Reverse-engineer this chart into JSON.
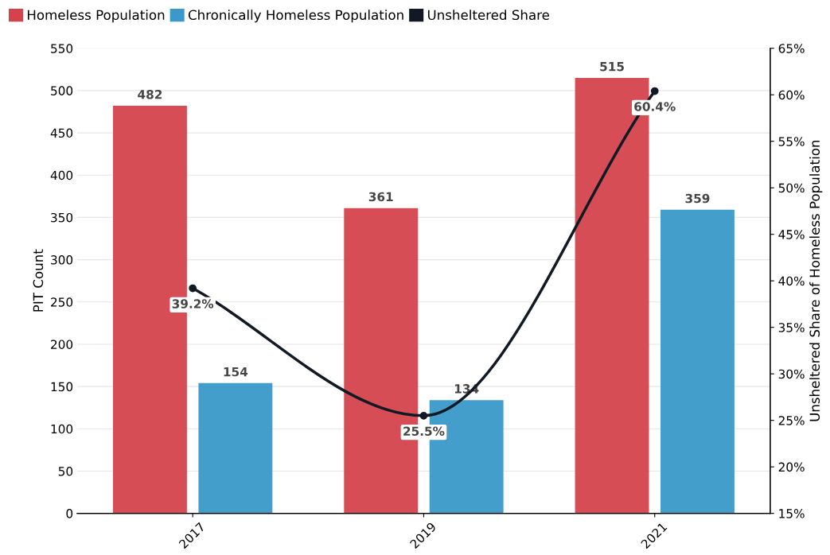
{
  "chart_data": {
    "type": "bar",
    "categories": [
      "2017",
      "2019",
      "2021"
    ],
    "ylabel": "PIT Count",
    "y2label": "Unsheltered Share of Homeless Population",
    "series": [
      {
        "name": "Homeless Population",
        "color": "#d4434c",
        "values": [
          482,
          361,
          515
        ]
      },
      {
        "name": "Chronically Homeless Population",
        "color": "#3a99c9",
        "values": [
          154,
          134,
          359
        ]
      },
      {
        "name": "Unsheltered Share",
        "color": "#111a24",
        "type": "line",
        "axis": "y2",
        "marker": "circle",
        "values": [
          39.2,
          25.5,
          60.4
        ],
        "value_labels": [
          "39.2%",
          "25.5%",
          "60.4%"
        ]
      }
    ],
    "ylim": [
      0,
      550
    ],
    "yticks": [
      0,
      50,
      100,
      150,
      200,
      250,
      300,
      350,
      400,
      450,
      500,
      550
    ],
    "y2lim": [
      15,
      65
    ],
    "y2ticks": [
      {
        "value": 15,
        "label": "15%"
      },
      {
        "value": 20,
        "label": "20%"
      },
      {
        "value": 25,
        "label": "25%"
      },
      {
        "value": 30,
        "label": "30%"
      },
      {
        "value": 35,
        "label": "35%"
      },
      {
        "value": 40,
        "label": "40%"
      },
      {
        "value": 45,
        "label": "45%"
      },
      {
        "value": 50,
        "label": "50%"
      },
      {
        "value": 55,
        "label": "55%"
      },
      {
        "value": 60,
        "label": "60%"
      },
      {
        "value": 65,
        "label": "65%"
      }
    ],
    "grid": "y",
    "legend": "top left",
    "data_labels": true
  }
}
